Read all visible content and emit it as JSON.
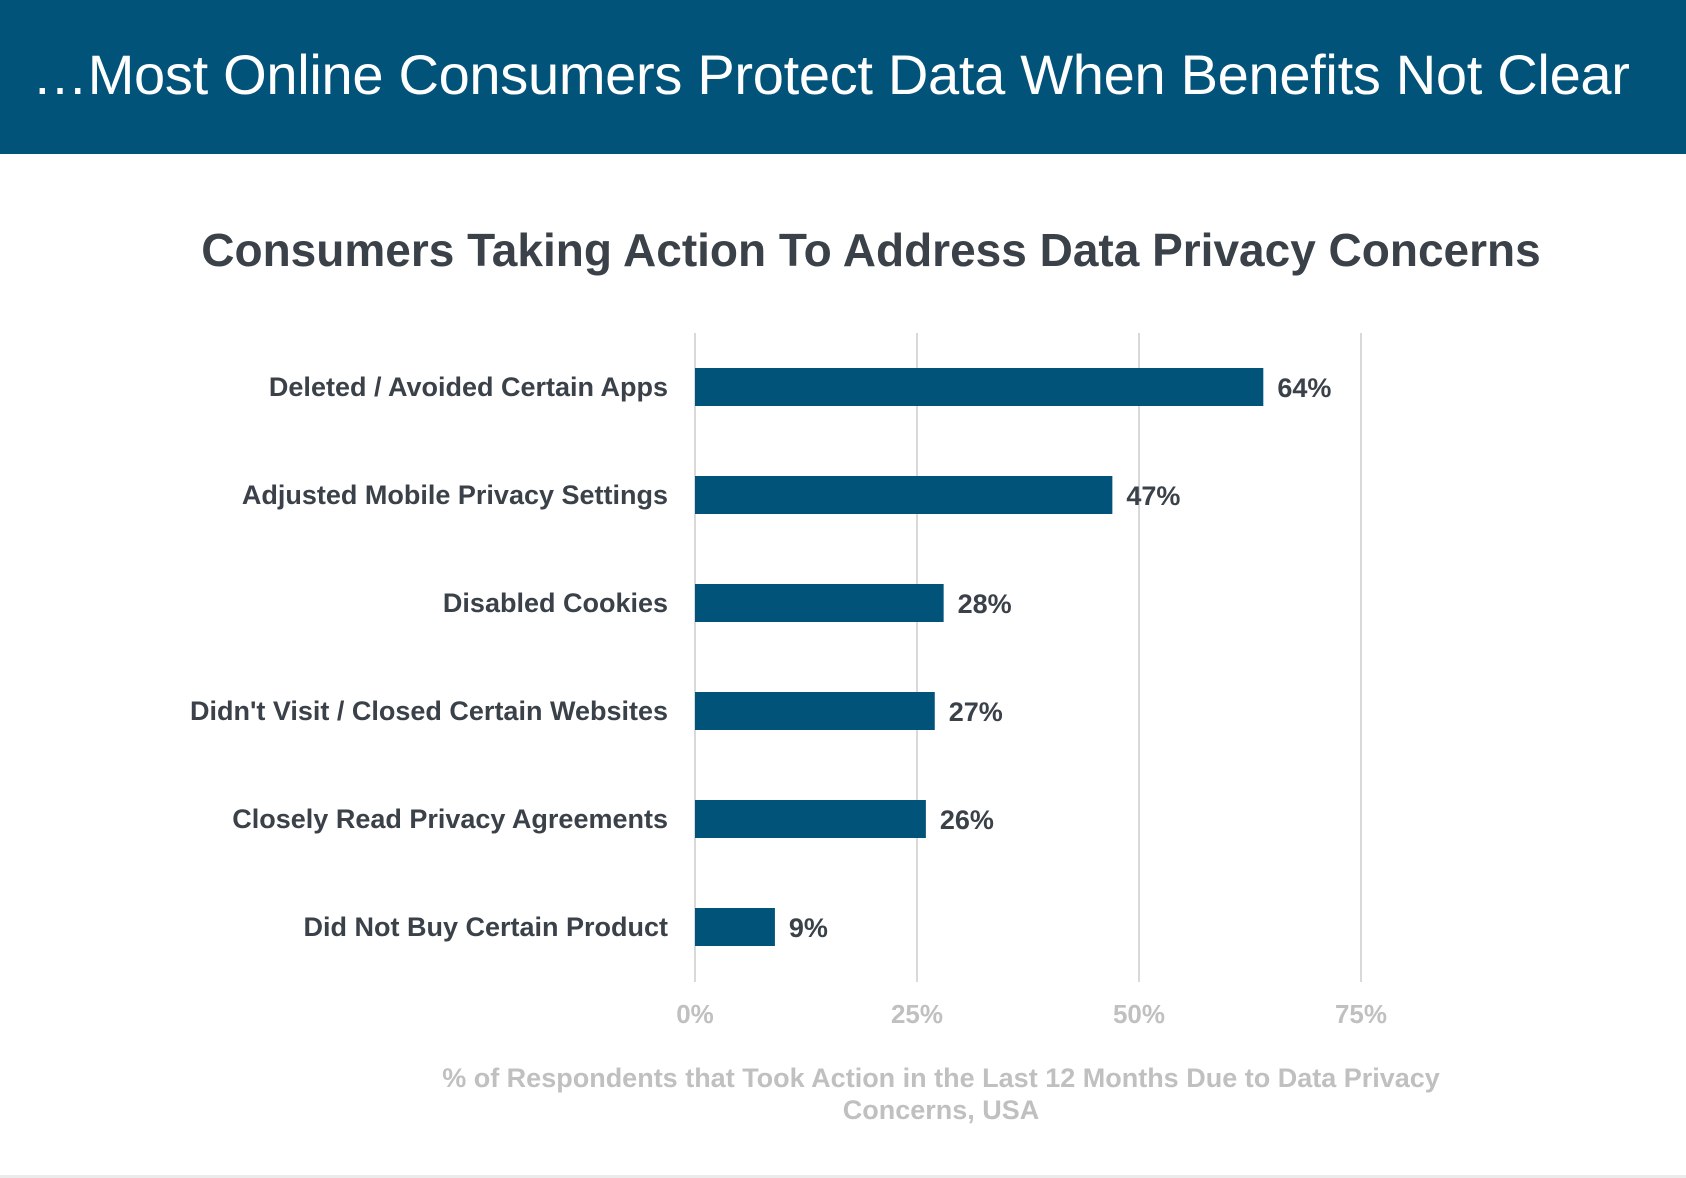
{
  "header": {
    "title": "…Most Online Consumers Protect Data When Benefits Not Clear"
  },
  "colors": {
    "header_bg": "#02537a",
    "bar": "#02537a",
    "text_dark": "#3a4149",
    "text_light": "#c0c0c0",
    "grid": "#d9d9d9"
  },
  "chart_data": {
    "type": "bar",
    "orientation": "horizontal",
    "title": "Consumers Taking Action To Address Data Privacy Concerns",
    "categories": [
      "Deleted / Avoided Certain Apps",
      "Adjusted Mobile Privacy Settings",
      "Disabled Cookies",
      "Didn't Visit / Closed Certain Websites",
      "Closely Read Privacy Agreements",
      "Did Not Buy Certain Product"
    ],
    "values": [
      64,
      47,
      28,
      27,
      26,
      9
    ],
    "value_labels": [
      "64%",
      "47%",
      "28%",
      "27%",
      "26%",
      "9%"
    ],
    "xlabel": "% of Respondents that Took Action in the Last 12 Months Due to Data Privacy Concerns, USA",
    "ylabel": "",
    "xlim": [
      0,
      75
    ],
    "xticks": [
      0,
      25,
      50,
      75
    ],
    "xtick_labels": [
      "0%",
      "25%",
      "50%",
      "75%"
    ],
    "grid": true,
    "legend": "none"
  }
}
